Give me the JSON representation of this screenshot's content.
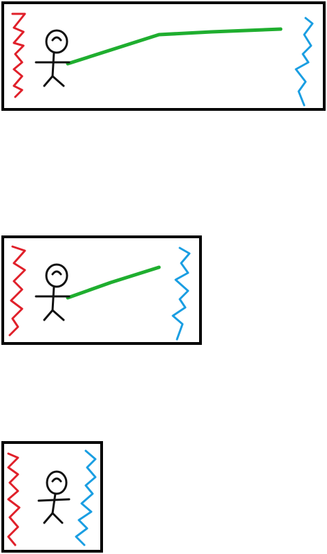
{
  "colors": {
    "background": "#ffffff",
    "frame": "#000000",
    "left_wall": "#e0202a",
    "right_wall": "#1a9ee2",
    "beam": "#1fae2f",
    "figure": "#111111"
  },
  "panels": [
    {
      "id": "panel-1",
      "has_beam": true
    },
    {
      "id": "panel-2",
      "has_beam": true
    },
    {
      "id": "panel-3",
      "has_beam": false
    }
  ]
}
